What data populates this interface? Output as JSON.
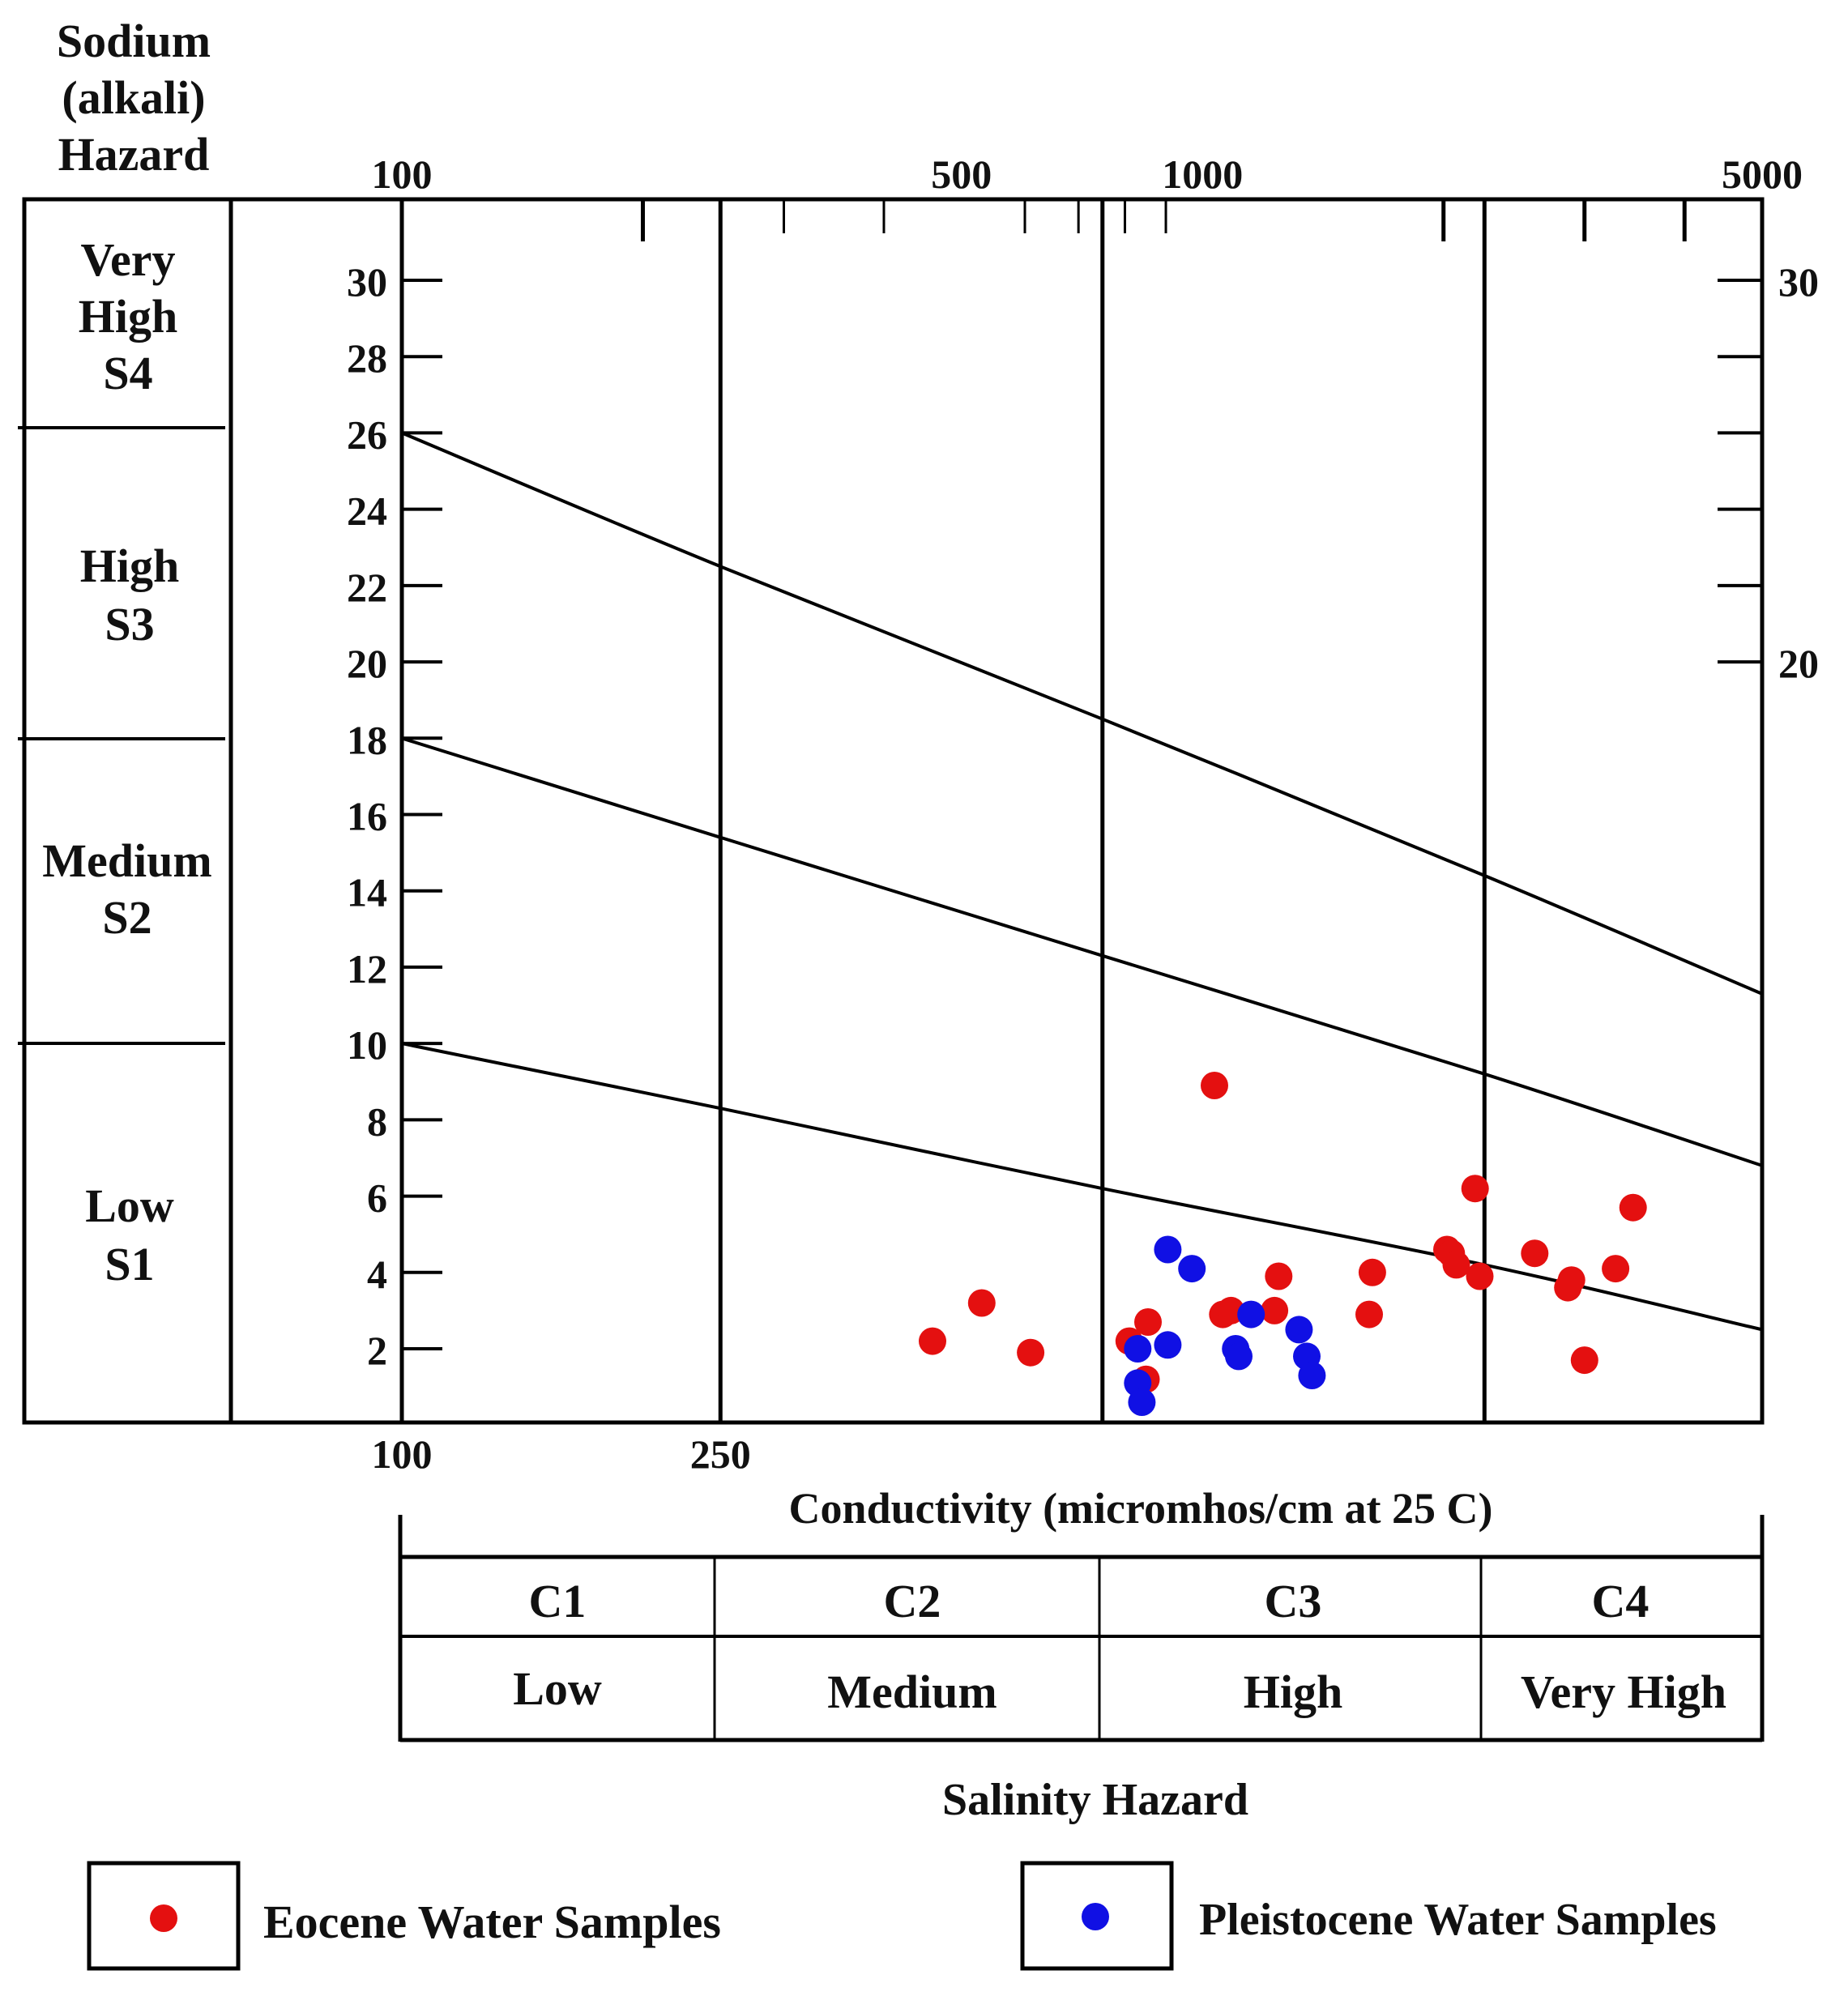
{
  "chart_data": {
    "type": "scatter",
    "title": "",
    "xlabel": "Conductivity (micromhos/cm at 25 C)",
    "ylabel": "Sodium (alkali) Hazard",
    "y_title_lines": [
      "Sodium",
      "(alkali)",
      "Hazard"
    ],
    "x_scale": "log",
    "xlim": [
      100,
      5000
    ],
    "ylim": [
      0,
      32
    ],
    "grid": false,
    "salinity_boundaries": [
      250,
      750,
      2250
    ],
    "x_top_tick_labels": [
      "100",
      "500",
      "1000",
      "5000"
    ],
    "x_top_label_values": [
      100,
      500,
      1000,
      5000
    ],
    "x_top_minor_ticks": [
      200,
      300,
      400,
      600,
      700,
      800,
      900,
      2000,
      3000,
      4000
    ],
    "x_bottom_tick_labels": [
      "100",
      "250"
    ],
    "x_bottom_label_values": [
      100,
      250
    ],
    "y_ticks": [
      2,
      4,
      6,
      8,
      10,
      12,
      14,
      16,
      18,
      20,
      22,
      24,
      26,
      28,
      30
    ],
    "y_tick_labels": [
      "2",
      "4",
      "6",
      "8",
      "10",
      "12",
      "14",
      "16",
      "18",
      "20",
      "22",
      "24",
      "26",
      "28",
      "30"
    ],
    "y_right_tick_labels": [
      "20",
      "30"
    ],
    "y_right_label_values": [
      20,
      30
    ],
    "y_right_ticks": [
      20,
      22,
      24,
      26,
      28,
      30
    ],
    "hazard_lines": [
      {
        "name": "S3-S4 boundary",
        "x": [
          100,
          250,
          750,
          2250,
          5000
        ],
        "y": [
          26,
          22.5,
          18.5,
          14.4,
          11.3
        ]
      },
      {
        "name": "S2-S3 boundary",
        "x": [
          100,
          250,
          750,
          2250,
          5000
        ],
        "y": [
          18,
          15.4,
          12.3,
          9.2,
          6.8
        ]
      },
      {
        "name": "S1-S2 boundary",
        "x": [
          100,
          250,
          750,
          2250,
          5000
        ],
        "y": [
          10,
          8.3,
          6.2,
          4.2,
          2.5
        ]
      }
    ],
    "sodium_classes": [
      {
        "label_lines": [
          "Very",
          "High",
          "S4"
        ],
        "y_range": [
          26,
          32
        ]
      },
      {
        "label_lines": [
          "High",
          "S3"
        ],
        "y_range": [
          18,
          26
        ]
      },
      {
        "label_lines": [
          "Medium",
          "S2"
        ],
        "y_range": [
          10,
          18
        ]
      },
      {
        "label_lines": [
          "Low",
          "S1"
        ],
        "y_range": [
          0,
          10
        ]
      }
    ],
    "salinity_classes": [
      {
        "code": "C1",
        "label": "Low"
      },
      {
        "code": "C2",
        "label": "Medium"
      },
      {
        "code": "C3",
        "label": "High"
      },
      {
        "code": "C4",
        "label": "Very High"
      }
    ],
    "salinity_title": "Salinity Hazard",
    "legend": "bottom",
    "series": [
      {
        "name": "Eocene Water Samples",
        "color": "#e41010",
        "points": [
          [
            460,
            2.2
          ],
          [
            530,
            3.2
          ],
          [
            610,
            1.9
          ],
          [
            810,
            2.2
          ],
          [
            855,
            2.7
          ],
          [
            850,
            1.2
          ],
          [
            1035,
            8.9
          ],
          [
            1060,
            2.9
          ],
          [
            1085,
            3.0
          ],
          [
            1230,
            3.0
          ],
          [
            1245,
            3.9
          ],
          [
            1630,
            4.0
          ],
          [
            1615,
            2.9
          ],
          [
            2020,
            4.6
          ],
          [
            2045,
            4.5
          ],
          [
            2075,
            4.2
          ],
          [
            2190,
            6.2
          ],
          [
            2220,
            3.9
          ],
          [
            2600,
            4.5
          ],
          [
            2860,
            3.6
          ],
          [
            2890,
            3.8
          ],
          [
            3000,
            1.7
          ],
          [
            3280,
            4.1
          ],
          [
            3450,
            5.7
          ]
        ]
      },
      {
        "name": "Pleistocene Water Samples",
        "color": "#1010e4",
        "points": [
          [
            905,
            4.6
          ],
          [
            970,
            4.1
          ],
          [
            905,
            2.1
          ],
          [
            830,
            2.0
          ],
          [
            830,
            1.1
          ],
          [
            840,
            0.6
          ],
          [
            1100,
            2.0
          ],
          [
            1110,
            1.8
          ],
          [
            1150,
            2.9
          ],
          [
            1320,
            2.5
          ],
          [
            1350,
            1.8
          ],
          [
            1370,
            1.3
          ]
        ]
      }
    ]
  }
}
